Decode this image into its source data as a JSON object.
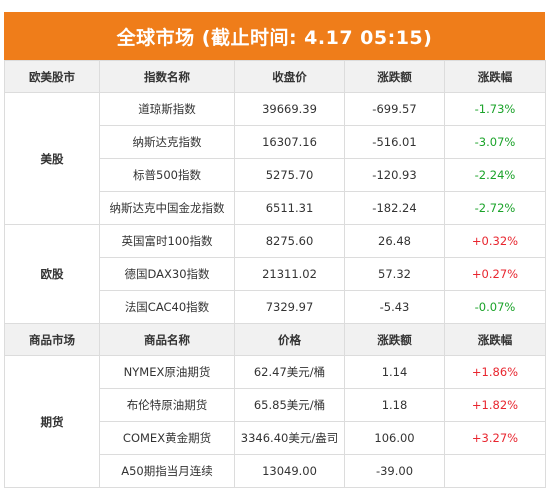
{
  "title": "全球市场 (截止时间: 4.17 05:15)",
  "colors": {
    "header_bg": "#ef7d1a",
    "up": "#e8262f",
    "down": "#1ba32a",
    "row_header_bg": "#f1f1f1"
  },
  "section1": {
    "headers": [
      "欧美股市",
      "指数名称",
      "收盘价",
      "涨跌额",
      "涨跌幅"
    ],
    "groups": [
      {
        "label": "美股",
        "rows": [
          {
            "name": "道琼斯指数",
            "price": "39669.39",
            "change": "-699.57",
            "pct": "-1.73%"
          },
          {
            "name": "纳斯达克指数",
            "price": "16307.16",
            "change": "-516.01",
            "pct": "-3.07%"
          },
          {
            "name": "标普500指数",
            "price": "5275.70",
            "change": "-120.93",
            "pct": "-2.24%"
          },
          {
            "name": "纳斯达克中国金龙指数",
            "price": "6511.31",
            "change": "-182.24",
            "pct": "-2.72%"
          }
        ]
      },
      {
        "label": "欧股",
        "rows": [
          {
            "name": "英国富时100指数",
            "price": "8275.60",
            "change": "26.48",
            "pct": "+0.32%"
          },
          {
            "name": "德国DAX30指数",
            "price": "21311.02",
            "change": "57.32",
            "pct": "+0.27%"
          },
          {
            "name": "法国CAC40指数",
            "price": "7329.97",
            "change": "-5.43",
            "pct": "-0.07%"
          }
        ]
      }
    ]
  },
  "section2": {
    "headers": [
      "商品市场",
      "商品名称",
      "价格",
      "涨跌额",
      "涨跌幅"
    ],
    "groups": [
      {
        "label": "期货",
        "rows": [
          {
            "name": "NYMEX原油期货",
            "price": "62.47美元/桶",
            "change": "1.14",
            "pct": "+1.86%"
          },
          {
            "name": "布伦特原油期货",
            "price": "65.85美元/桶",
            "change": "1.18",
            "pct": "+1.82%"
          },
          {
            "name": "COMEX黄金期货",
            "price": "3346.40美元/盎司",
            "change": "106.00",
            "pct": "+3.27%"
          },
          {
            "name": "A50期指当月连续",
            "price": "13049.00",
            "change": "-39.00",
            "pct": ""
          }
        ]
      }
    ]
  }
}
